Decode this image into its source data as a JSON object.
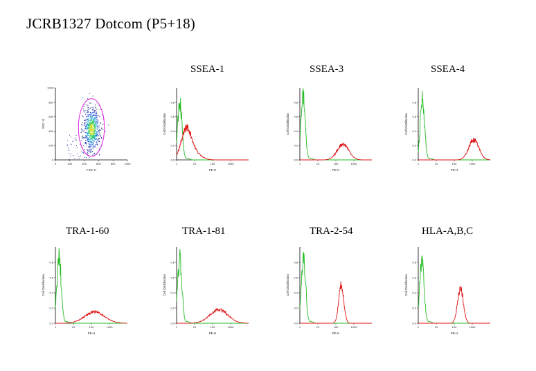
{
  "title": "JCRB1327  Dotcom  (P5+18)",
  "colors": {
    "control": "#22bb22",
    "sample": "#dd1111",
    "gate": "#dd22dd",
    "axis": "#000000"
  },
  "chart_data": [
    {
      "id": "scatter",
      "type": "scatter",
      "title": "",
      "xlabel": "FSC-H",
      "ylabel": "SSC-H",
      "xlim": [
        0,
        1000
      ],
      "ylim": [
        0,
        1000
      ],
      "xticks": [
        "0",
        "200",
        "400",
        "600",
        "800",
        "1000"
      ],
      "yticks": [
        "0",
        "200",
        "400",
        "600",
        "800",
        "1000"
      ],
      "gate": {
        "shape": "ellipse",
        "cx": 500,
        "cy": 450,
        "rx": 180,
        "ry": 400
      },
      "cluster": {
        "x_center": 500,
        "y_center": 430,
        "x_spread": 60,
        "y_spread": 150,
        "points": 700
      }
    },
    {
      "id": "ssea1",
      "type": "line",
      "title": "SSEA-1",
      "xlabel": "PE-H",
      "ylabel": "Cell Distribution",
      "xscale": "log",
      "xlim": [
        1,
        10000
      ],
      "ylim": [
        0,
        1
      ],
      "xticks": [
        "1",
        "10",
        "100",
        "1000"
      ],
      "yticks": [
        "0.0",
        "0.2",
        "0.4",
        "0.6",
        "0.8"
      ],
      "series": [
        {
          "role": "control",
          "peak": 1.5,
          "width": 0.12,
          "height": 0.82
        },
        {
          "role": "sample",
          "peak": 3.5,
          "width": 0.28,
          "height": 0.42,
          "tail": 0.08
        }
      ]
    },
    {
      "id": "ssea3",
      "type": "line",
      "title": "SSEA-3",
      "xlabel": "PE-H",
      "ylabel": "Cell Distribution",
      "xscale": "log",
      "xlim": [
        1,
        10000
      ],
      "ylim": [
        0,
        1
      ],
      "xticks": [
        "1",
        "10",
        "100",
        "1000"
      ],
      "yticks": [
        "0.0",
        "0.2",
        "0.4",
        "0.6",
        "0.8"
      ],
      "series": [
        {
          "role": "control",
          "peak": 1.5,
          "width": 0.12,
          "height": 0.88
        },
        {
          "role": "sample",
          "peak": 250,
          "width": 0.32,
          "height": 0.22
        }
      ]
    },
    {
      "id": "ssea4",
      "type": "line",
      "title": "SSEA-4",
      "xlabel": "PE-H",
      "ylabel": "Cell Distribution",
      "xscale": "log",
      "xlim": [
        1,
        10000
      ],
      "ylim": [
        0,
        1
      ],
      "xticks": [
        "1",
        "10",
        "100",
        "1000"
      ],
      "yticks": [
        "0.0",
        "0.2",
        "0.4",
        "0.6",
        "0.8"
      ],
      "series": [
        {
          "role": "control",
          "peak": 1.7,
          "width": 0.12,
          "height": 0.85
        },
        {
          "role": "sample",
          "peak": 1200,
          "width": 0.28,
          "height": 0.28
        }
      ]
    },
    {
      "id": "tra160",
      "type": "line",
      "title": "TRA-1-60",
      "xlabel": "PE-H",
      "ylabel": "Cell Distribution",
      "xscale": "log",
      "xlim": [
        1,
        10000
      ],
      "ylim": [
        0,
        1
      ],
      "xticks": [
        "1",
        "10",
        "100",
        "1000"
      ],
      "yticks": [
        "0.0",
        "0.2",
        "0.4",
        "0.6",
        "0.8"
      ],
      "series": [
        {
          "role": "control",
          "peak": 1.6,
          "width": 0.12,
          "height": 0.86
        },
        {
          "role": "sample",
          "peak": 150,
          "width": 0.55,
          "height": 0.15
        }
      ]
    },
    {
      "id": "tra181",
      "type": "line",
      "title": "TRA-1-81",
      "xlabel": "PE-H",
      "ylabel": "Cell Distribution",
      "xscale": "log",
      "xlim": [
        1,
        10000
      ],
      "ylim": [
        0,
        1
      ],
      "xticks": [
        "1",
        "10",
        "100",
        "1000"
      ],
      "yticks": [
        "0.0",
        "0.2",
        "0.4",
        "0.6",
        "0.8"
      ],
      "series": [
        {
          "role": "control",
          "peak": 1.5,
          "width": 0.12,
          "height": 0.86
        },
        {
          "role": "sample",
          "peak": 220,
          "width": 0.5,
          "height": 0.18
        }
      ]
    },
    {
      "id": "tra254",
      "type": "line",
      "title": "TRA-2-54",
      "xlabel": "PE-H",
      "ylabel": "Cell Distribution",
      "xscale": "log",
      "xlim": [
        1,
        10000
      ],
      "ylim": [
        0,
        1
      ],
      "xticks": [
        "1",
        "10",
        "100",
        "1000"
      ],
      "yticks": [
        "0.0",
        "0.2",
        "0.4",
        "0.6",
        "0.8"
      ],
      "series": [
        {
          "role": "control",
          "peak": 1.6,
          "width": 0.12,
          "height": 0.86
        },
        {
          "role": "sample",
          "peak": 200,
          "width": 0.14,
          "height": 0.5
        }
      ]
    },
    {
      "id": "hla",
      "type": "line",
      "title": "HLA-A,B,C",
      "xlabel": "PE-H",
      "ylabel": "Cell Distribution",
      "xscale": "log",
      "xlim": [
        1,
        10000
      ],
      "ylim": [
        0,
        1
      ],
      "xticks": [
        "1",
        "10",
        "100",
        "1000"
      ],
      "yticks": [
        "0.0",
        "0.2",
        "0.4",
        "0.6",
        "0.8"
      ],
      "series": [
        {
          "role": "control",
          "peak": 1.6,
          "width": 0.12,
          "height": 0.86
        },
        {
          "role": "sample",
          "peak": 220,
          "width": 0.16,
          "height": 0.46
        }
      ]
    }
  ]
}
